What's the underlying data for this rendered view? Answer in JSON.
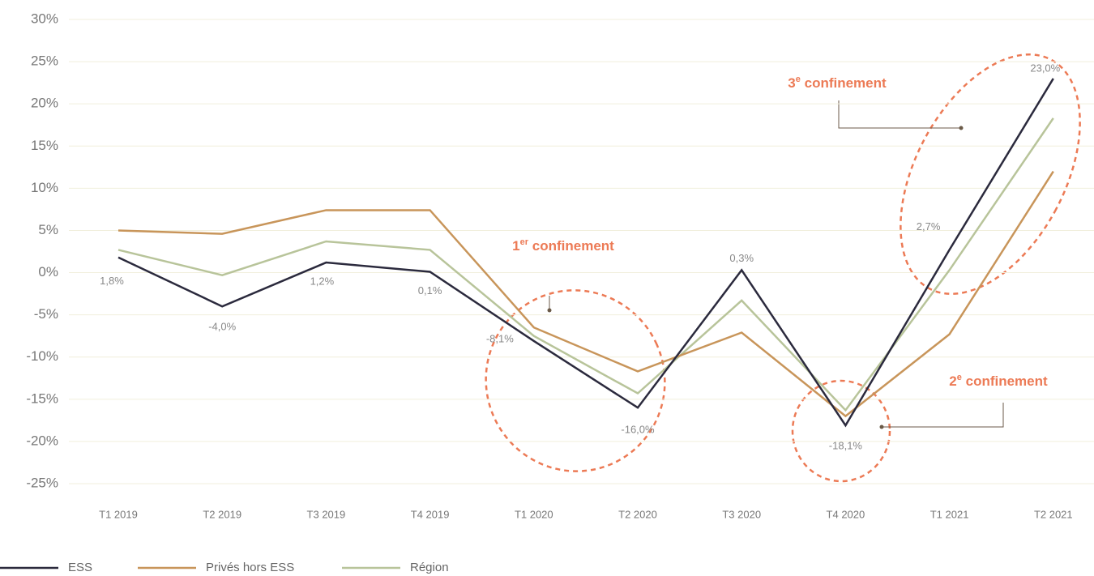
{
  "chart_data": {
    "type": "line",
    "categories": [
      "T1 2019",
      "T2 2019",
      "T3 2019",
      "T4 2019",
      "T1 2020",
      "T2 2020",
      "T3 2020",
      "T4 2020",
      "T1 2021",
      "T2 2021"
    ],
    "series": [
      {
        "name": "ESS",
        "color": "#2b2a3d",
        "values": [
          1.8,
          -4.0,
          1.2,
          0.1,
          -8.1,
          -16.0,
          0.3,
          -18.1,
          2.7,
          23.0
        ],
        "value_labels": [
          "1,8%",
          "-4,0%",
          "1,2%",
          "0,1%",
          "-8,1%",
          "-16,0%",
          "0,3%",
          "-18,1%",
          "2,7%",
          "23,0%"
        ]
      },
      {
        "name": "Privés hors ESS",
        "color": "#c8955a",
        "values": [
          5.0,
          4.6,
          7.4,
          7.4,
          -6.5,
          -11.7,
          -7.1,
          -17.0,
          -7.3,
          12.0
        ]
      },
      {
        "name": "Région",
        "color": "#b8c49a",
        "values": [
          2.7,
          -0.3,
          3.7,
          2.7,
          -7.5,
          -14.3,
          -3.3,
          -16.3,
          0.3,
          18.3
        ]
      }
    ],
    "ylim": [
      -25,
      30
    ],
    "yticks": [
      {
        "value": 30,
        "label": "30%"
      },
      {
        "value": 25,
        "label": "25%"
      },
      {
        "value": 20,
        "label": "20%"
      },
      {
        "value": 15,
        "label": "15%"
      },
      {
        "value": 10,
        "label": "10%"
      },
      {
        "value": 5,
        "label": "5%"
      },
      {
        "value": 0,
        "label": "0%"
      },
      {
        "value": -5,
        "label": "-5%"
      },
      {
        "value": -10,
        "label": "-10%"
      },
      {
        "value": -15,
        "label": "-15%"
      },
      {
        "value": -20,
        "label": "-20%"
      },
      {
        "value": -25,
        "label": "-25%"
      }
    ],
    "grid": true,
    "annotations": [
      {
        "number": "1",
        "sup": "er",
        "text": " confinement"
      },
      {
        "number": "2",
        "sup": "e",
        "text": " confinement"
      },
      {
        "number": "3",
        "sup": "e",
        "text": " confinement"
      }
    ]
  }
}
